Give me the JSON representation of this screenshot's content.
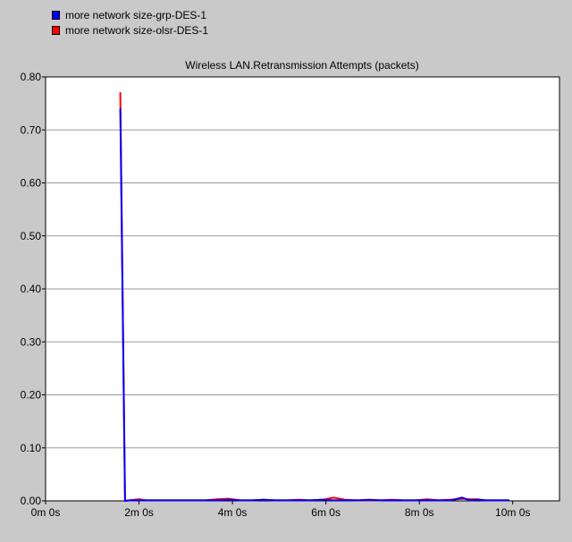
{
  "legend": {
    "items": [
      {
        "label": "more network size-grp-DES-1",
        "color": "#0000ff"
      },
      {
        "label": "more network size-olsr-DES-1",
        "color": "#ff0000"
      }
    ]
  },
  "chart_data": {
    "type": "line",
    "title": "Wireless LAN.Retransmission Attempts (packets)",
    "xlabel": "",
    "ylabel": "",
    "xlim": [
      0,
      660
    ],
    "ylim": [
      0,
      0.8
    ],
    "x_ticks": [
      0,
      120,
      240,
      360,
      480,
      600
    ],
    "x_tick_labels": [
      "0m 0s",
      "2m 0s",
      "4m 0s",
      "6m 0s",
      "8m 0s",
      "10m 0s"
    ],
    "y_ticks": [
      0,
      0.1,
      0.2,
      0.3,
      0.4,
      0.5,
      0.6,
      0.7,
      0.8
    ],
    "y_tick_labels": [
      "0.00",
      "0.10",
      "0.20",
      "0.30",
      "0.40",
      "0.50",
      "0.60",
      "0.70",
      "0.80"
    ],
    "grid": "horizontal",
    "legend_position": "top-left",
    "series": [
      {
        "name": "more network size-grp-DES-1",
        "color": "#0000ff",
        "x": [
          96,
          102,
          108,
          114,
          120,
          130,
          145,
          160,
          175,
          190,
          205,
          220,
          235,
          250,
          265,
          280,
          295,
          310,
          325,
          340,
          355,
          370,
          385,
          400,
          415,
          430,
          445,
          460,
          475,
          490,
          505,
          520,
          535,
          545,
          555,
          565,
          580,
          595
        ],
        "values": [
          0.74,
          0.0,
          0.001,
          0.001,
          0.001,
          0.001,
          0.001,
          0.001,
          0.001,
          0.001,
          0.001,
          0.001,
          0.002,
          0.001,
          0.001,
          0.002,
          0.001,
          0.001,
          0.001,
          0.001,
          0.002,
          0.001,
          0.001,
          0.001,
          0.002,
          0.001,
          0.001,
          0.001,
          0.001,
          0.001,
          0.001,
          0.001,
          0.006,
          0.001,
          0.002,
          0.001,
          0.001,
          0.001
        ]
      },
      {
        "name": "more network size-olsr-DES-1",
        "color": "#ff0000",
        "x": [
          96,
          102,
          108,
          114,
          120,
          130,
          145,
          160,
          175,
          190,
          205,
          220,
          235,
          250,
          265,
          280,
          295,
          310,
          325,
          340,
          355,
          370,
          385,
          400,
          415,
          430,
          445,
          460,
          475,
          490,
          505,
          520,
          535,
          545,
          555,
          565,
          580,
          595
        ],
        "values": [
          0.77,
          0.0,
          0.001,
          0.002,
          0.003,
          0.001,
          0.001,
          0.001,
          0.001,
          0.001,
          0.001,
          0.003,
          0.004,
          0.001,
          0.001,
          0.002,
          0.001,
          0.001,
          0.002,
          0.001,
          0.002,
          0.006,
          0.002,
          0.001,
          0.001,
          0.001,
          0.002,
          0.001,
          0.001,
          0.003,
          0.001,
          0.002,
          0.004,
          0.003,
          0.003,
          0.001,
          0.001,
          0.001
        ]
      }
    ]
  }
}
